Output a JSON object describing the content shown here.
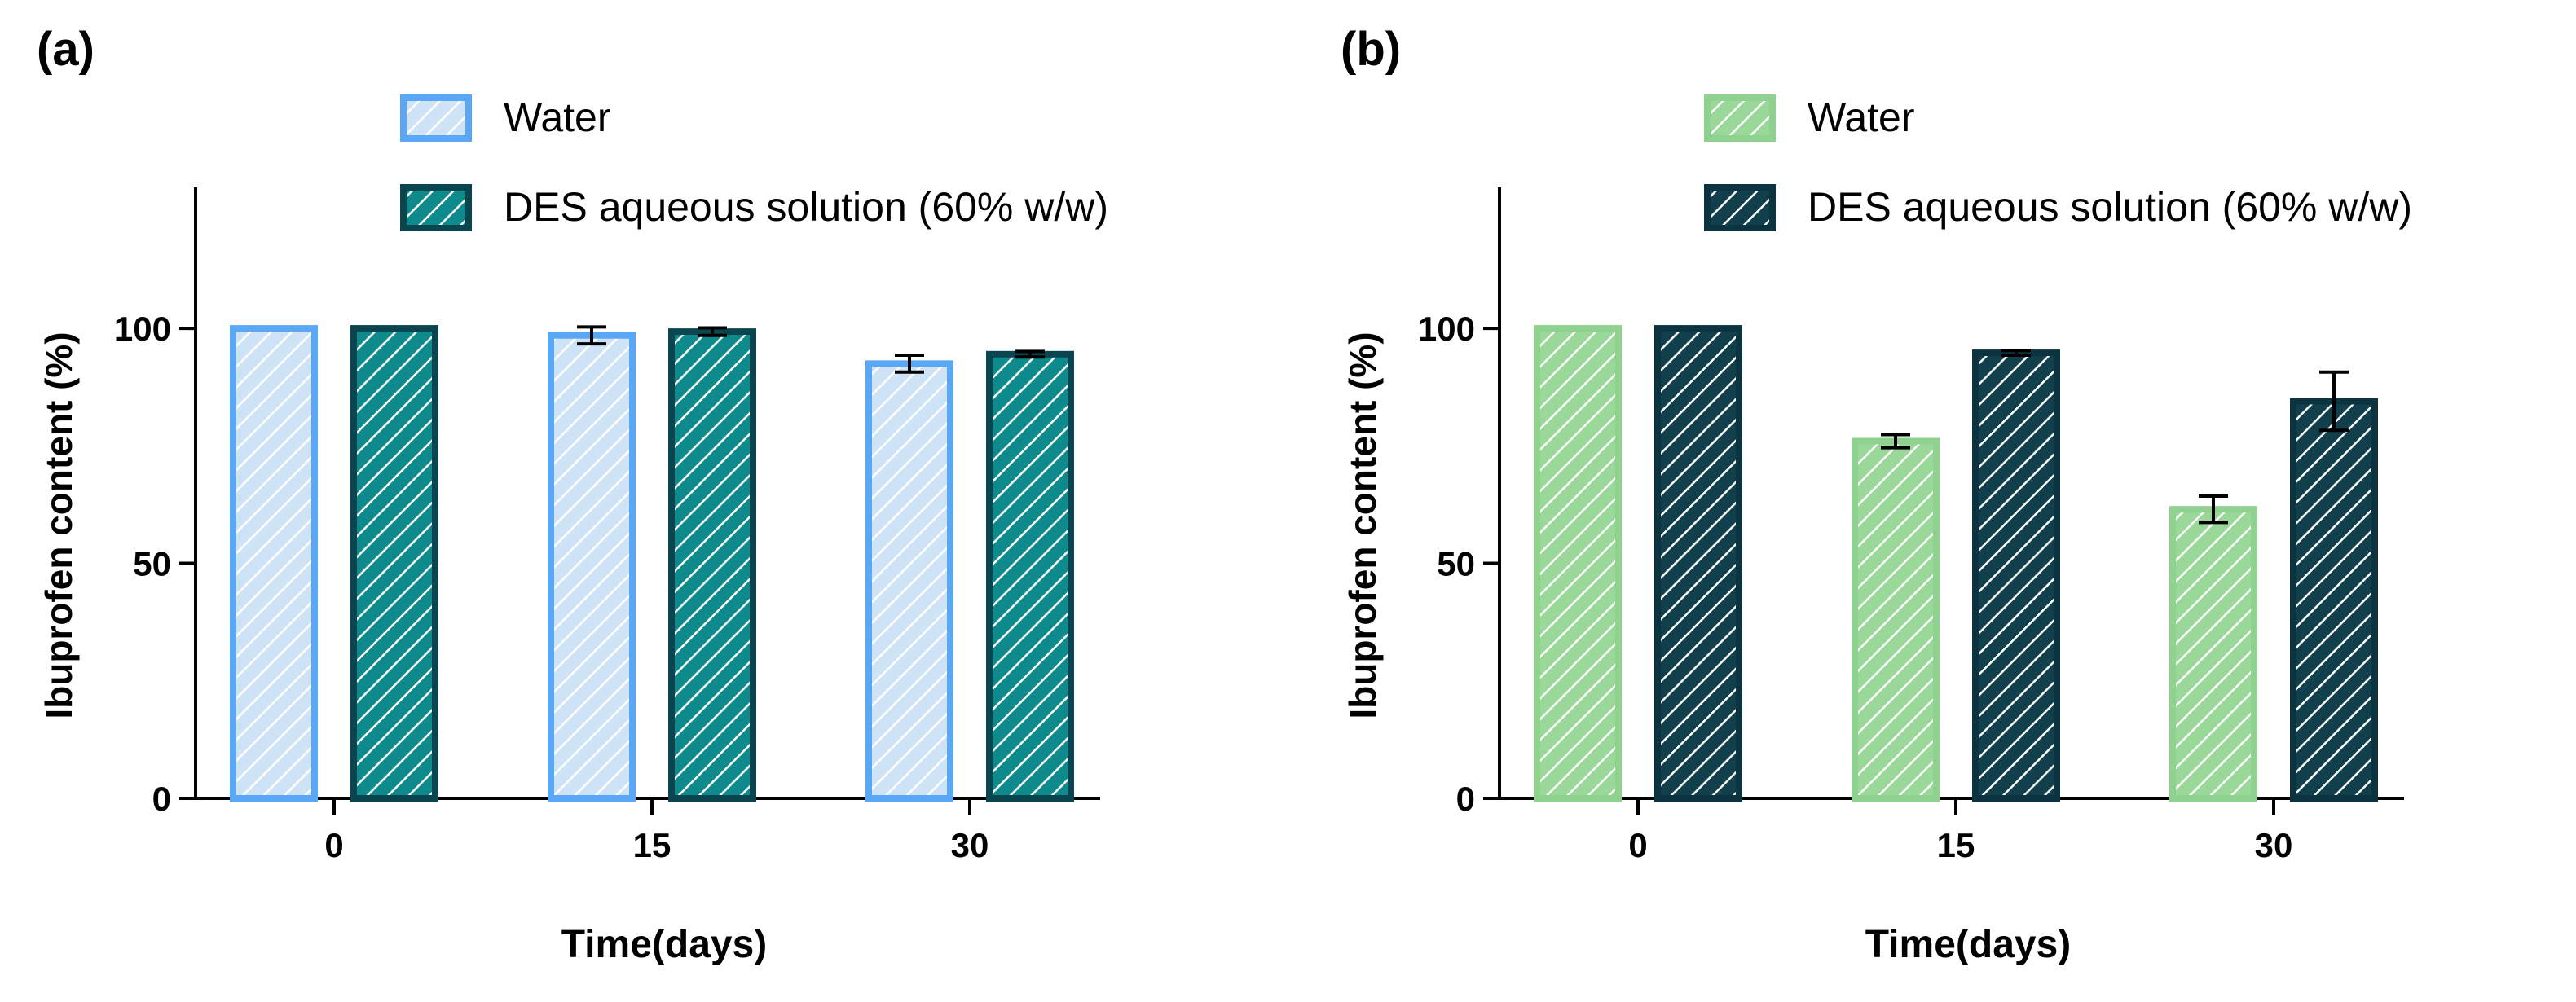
{
  "chart_data": [
    {
      "panel_label": "(a)",
      "type": "bar",
      "categories": [
        "0",
        "15",
        "30"
      ],
      "xlabel": "Time(days)",
      "ylabel": "Ibuprofen content (%)",
      "ylim": [
        0,
        130
      ],
      "yticks": [
        0,
        50,
        100
      ],
      "legend": "top-right",
      "series": [
        {
          "name": "Water",
          "values": [
            100,
            98.5,
            92.5
          ],
          "errors": [
            0,
            1.8,
            1.8
          ],
          "fill": "#cfe3f7",
          "stroke": "#5aa8f5",
          "hatch": "#ffffff"
        },
        {
          "name": "DES aqueous solution (60% w/w)",
          "values": [
            100,
            99.3,
            94.5
          ],
          "errors": [
            0,
            0.8,
            0.6
          ],
          "fill": "#0f8a8c",
          "stroke": "#0b4650",
          "hatch": "#ffffff"
        }
      ]
    },
    {
      "panel_label": "(b)",
      "type": "bar",
      "categories": [
        "0",
        "15",
        "30"
      ],
      "xlabel": "Time(days)",
      "ylabel": "Ibuprofen content (%)",
      "ylim": [
        0,
        130
      ],
      "yticks": [
        0,
        50,
        100
      ],
      "legend": "top-right",
      "series": [
        {
          "name": "Water",
          "values": [
            100,
            76,
            61.5
          ],
          "errors": [
            0,
            1.4,
            2.8
          ],
          "fill": "#9ad89a",
          "stroke": "#8fd18f",
          "hatch": "#ffffff"
        },
        {
          "name": "DES aqueous solution (60% w/w)",
          "values": [
            100,
            94.8,
            84.5
          ],
          "errors": [
            0,
            0.5,
            6.2
          ],
          "fill": "#123f4c",
          "stroke": "#0b3440",
          "hatch": "#ffffff"
        }
      ]
    }
  ]
}
